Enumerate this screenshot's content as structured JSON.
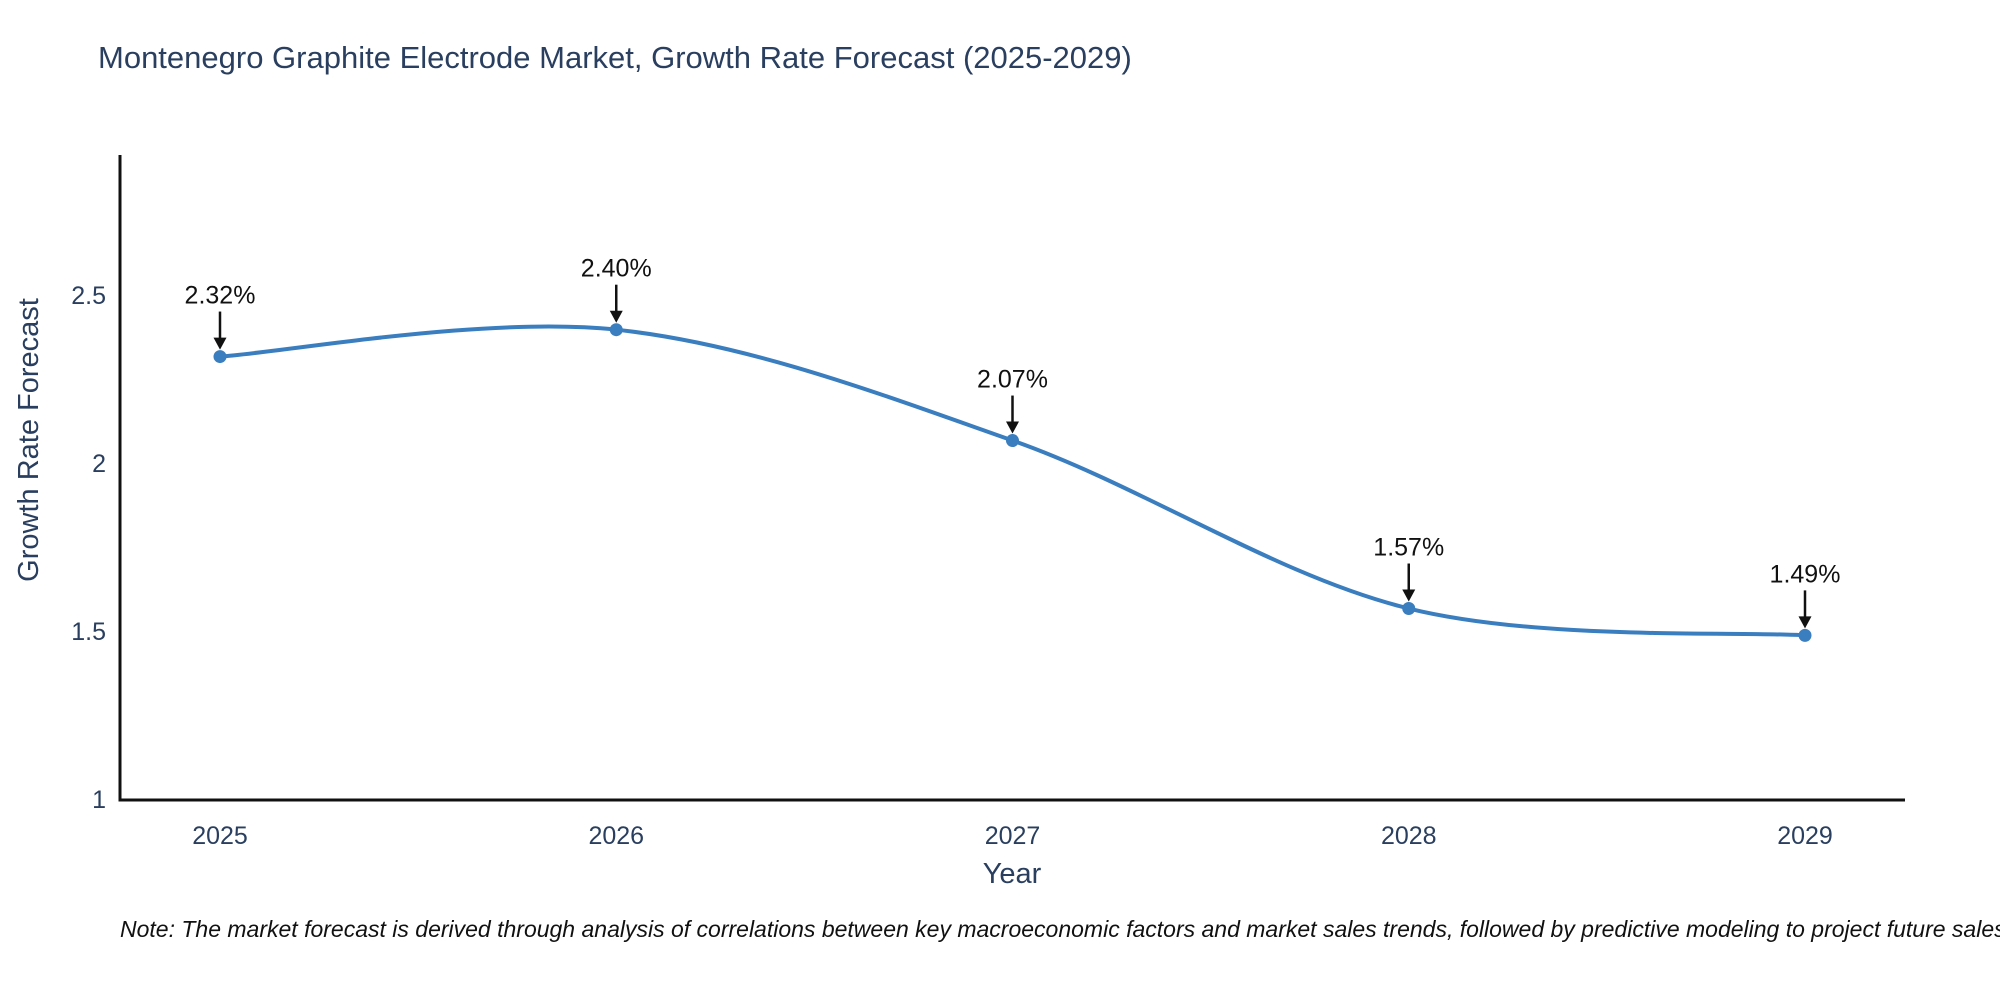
{
  "page": {
    "background": "#ffffff"
  },
  "chart_data": {
    "type": "line",
    "title": "Montenegro Graphite Electrode Market, Growth Rate Forecast (2025-2029)",
    "xlabel": "Year",
    "ylabel": "Growth Rate Forecast",
    "categories": [
      "2025",
      "2026",
      "2027",
      "2028",
      "2029"
    ],
    "series": [
      {
        "name": "Growth Rate Forecast",
        "values": [
          2.32,
          2.4,
          2.07,
          1.57,
          1.49
        ]
      }
    ],
    "point_labels": [
      "2.32%",
      "2.40%",
      "2.07%",
      "1.57%",
      "1.49%"
    ],
    "yticks": [
      1,
      1.5,
      2,
      2.5
    ],
    "ytick_labels": [
      "1",
      "1.5",
      "2",
      "2.5"
    ],
    "ylim": [
      1,
      2.92
    ],
    "line_shape": "spline",
    "grid": false,
    "legend_position": "none",
    "colors": {
      "line": "#3a7ebf",
      "marker": "#3a7ebf",
      "axis": "#111111",
      "title_text": "#2a3f5f",
      "tick_text": "#2a3f5f",
      "annotation": "#111111"
    },
    "note": "Note: The market forecast is derived through analysis of correlations between key macroeconomic factors and market sales trends, followed by predictive modeling to project future sales"
  }
}
